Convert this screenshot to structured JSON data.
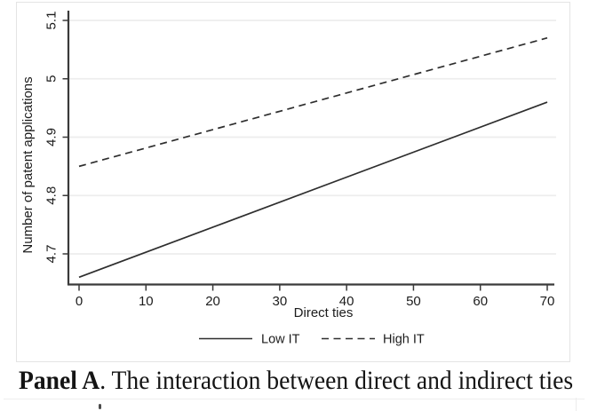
{
  "figure": {
    "caption": {
      "label": "Panel A",
      "text": ". The interaction between direct and indirect ties"
    }
  },
  "chart_data": {
    "type": "line",
    "title": "",
    "xlabel": "Direct ties",
    "ylabel": "Number of patent applications",
    "x_ticks": [
      0,
      10,
      20,
      30,
      40,
      50,
      60,
      70
    ],
    "y_ticks": [
      4.7,
      4.8,
      4.9,
      5,
      5.1
    ],
    "y_tick_labels": [
      "4.7",
      "4.8",
      "4.9",
      "5",
      "5.1"
    ],
    "xlim": [
      0,
      70
    ],
    "ylim": [
      4.64,
      5.12
    ],
    "grid": "horizontal-only",
    "legend_position": "bottom-center",
    "series": [
      {
        "name": "Low IT",
        "line_style": "solid",
        "x": [
          0,
          70
        ],
        "y": [
          4.66,
          4.96
        ]
      },
      {
        "name": "High IT",
        "line_style": "dashed",
        "x": [
          0,
          70
        ],
        "y": [
          4.85,
          5.07
        ]
      }
    ],
    "colors": {
      "line": "#2e2e2e",
      "grid": "#ededed",
      "axis": "#3a3a3a",
      "region_border": "#e4e4e4",
      "text": "#1c1c1c"
    }
  }
}
